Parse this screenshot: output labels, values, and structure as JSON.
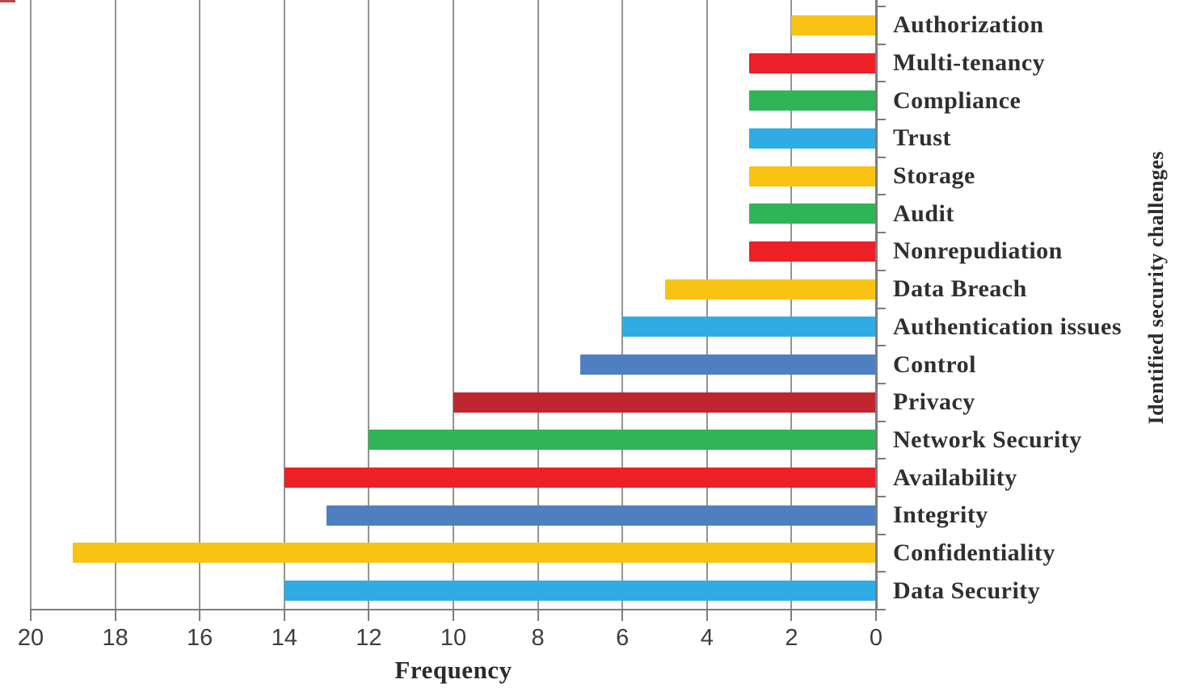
{
  "chart_data": {
    "type": "bar",
    "orientation": "horizontal",
    "title": "",
    "xlabel": "Frequency",
    "ylabel": "Identified security challenges",
    "x_axis": {
      "min": 0,
      "max": 20,
      "reversed": true,
      "tick_step": 2,
      "ticks": [
        20,
        18,
        16,
        14,
        12,
        10,
        8,
        6,
        4,
        2,
        0
      ]
    },
    "grid": true,
    "legend": false,
    "categories": [
      {
        "label": "Authorization",
        "value": 2,
        "color_key": "yellow"
      },
      {
        "label": "Multi-tenancy",
        "value": 3,
        "color_key": "red"
      },
      {
        "label": "Compliance",
        "value": 3,
        "color_key": "green"
      },
      {
        "label": "Trust",
        "value": 3,
        "color_key": "light_blue"
      },
      {
        "label": "Storage",
        "value": 3,
        "color_key": "yellow"
      },
      {
        "label": "Audit",
        "value": 3,
        "color_key": "green"
      },
      {
        "label": "Nonrepudiation",
        "value": 3,
        "color_key": "red"
      },
      {
        "label": "Data Breach",
        "value": 5,
        "color_key": "yellow"
      },
      {
        "label": "Authentication issues",
        "value": 6,
        "color_key": "light_blue"
      },
      {
        "label": "Control",
        "value": 7,
        "color_key": "steel_blue"
      },
      {
        "label": "Privacy",
        "value": 10,
        "color_key": "dark_red"
      },
      {
        "label": "Network Security",
        "value": 12,
        "color_key": "green"
      },
      {
        "label": "Availability",
        "value": 14,
        "color_key": "red"
      },
      {
        "label": "Integrity",
        "value": 13,
        "color_key": "steel_blue"
      },
      {
        "label": "Confidentiality",
        "value": 19,
        "color_key": "yellow"
      },
      {
        "label": "Data Security",
        "value": 14,
        "color_key": "light_blue"
      }
    ],
    "palette": {
      "yellow": "#F9C313",
      "red": "#EC2026",
      "green": "#2FB457",
      "light_blue": "#2FACE3",
      "steel_blue": "#4E80C1",
      "dark_red": "#C02630"
    },
    "axis_colors": {
      "grid": "#939393",
      "axis": "#7D7D7D",
      "label_text": "#2F2F2F",
      "tick_text": "#3D3D3D"
    }
  }
}
